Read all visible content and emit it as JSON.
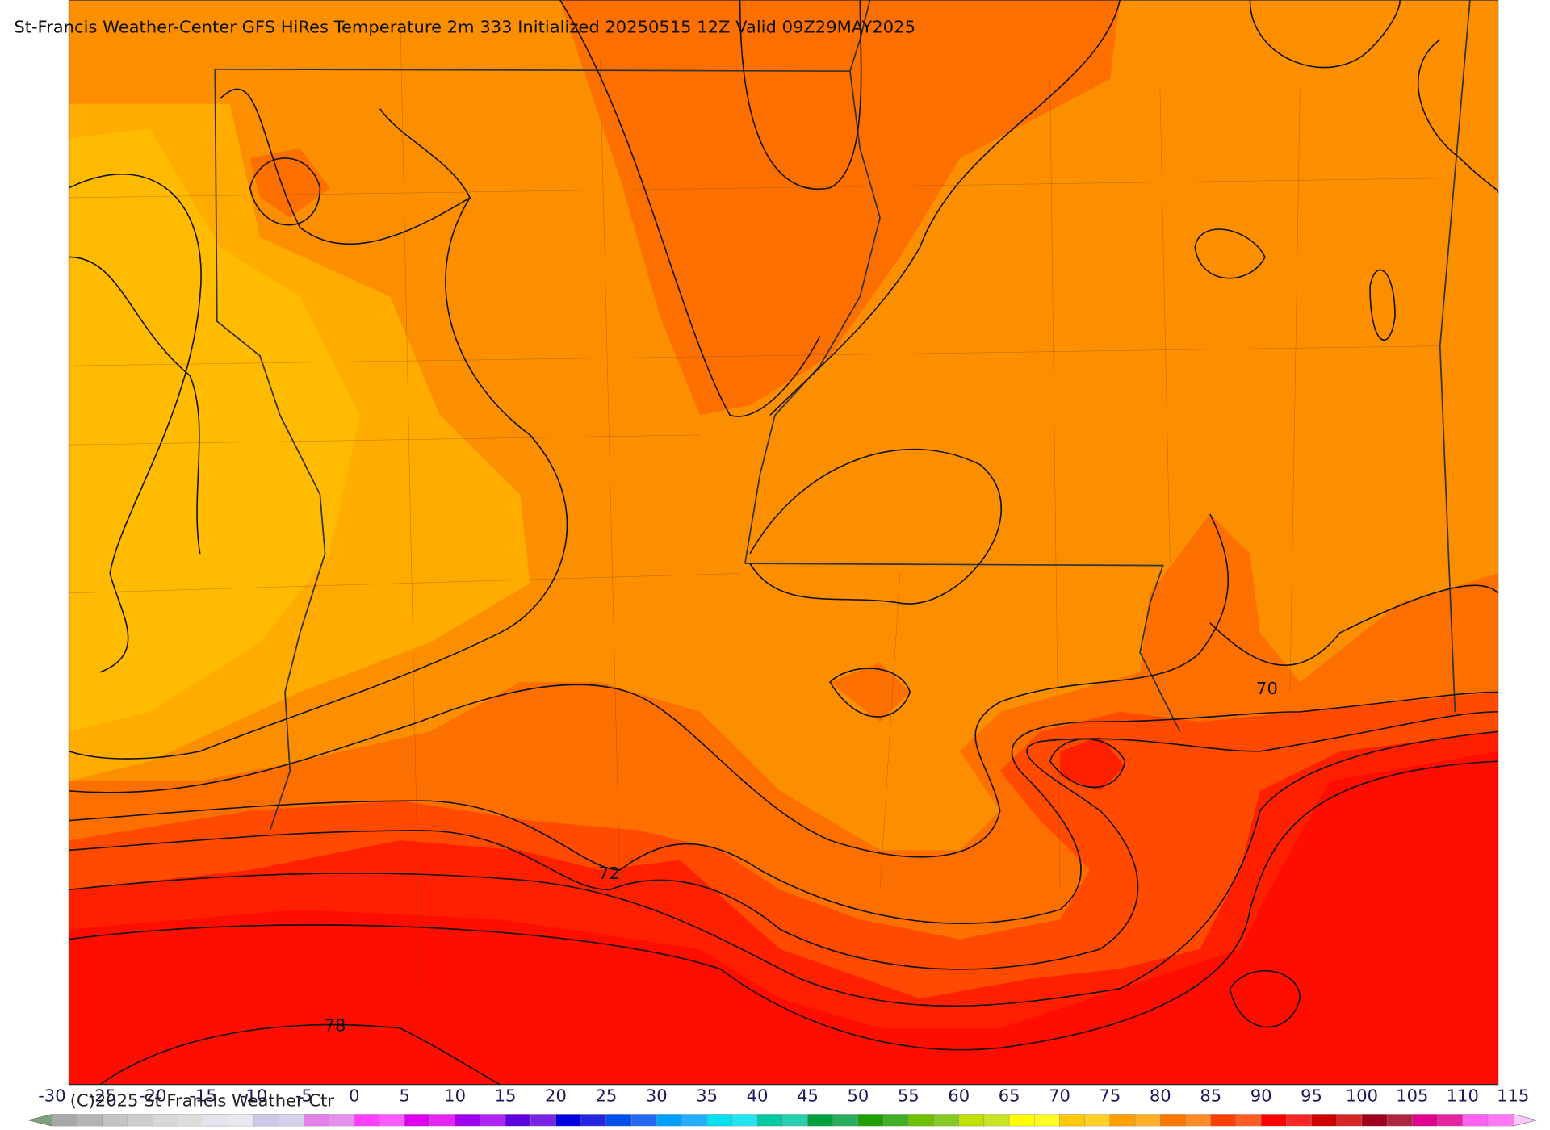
{
  "title": "St-Francis Weather-Center GFS HiRes Temperature 2m  333 Initialized 20250515 12Z Valid 09Z29MAY2025",
  "copyright": "(C)2025 St Francis Weather Ctr",
  "contour_labels": [
    {
      "text": "70"
    },
    {
      "text": "72"
    },
    {
      "text": "78"
    }
  ],
  "colorbar": {
    "ticks": [
      -30,
      -25,
      -20,
      -15,
      -10,
      -5,
      0,
      5,
      10,
      15,
      20,
      25,
      30,
      35,
      40,
      45,
      50,
      55,
      60,
      65,
      70,
      75,
      80,
      85,
      90,
      95,
      100,
      105,
      110,
      115
    ],
    "colors": [
      "#a8a8a8",
      "#c4c4c4",
      "#d8d8d8",
      "#e4e4ee",
      "#d0c8e8",
      "#e080e8",
      "#ff40ff",
      "#e000f0",
      "#a000f0",
      "#6000e0",
      "#0000e0",
      "#0050f0",
      "#00a0ff",
      "#00e0f0",
      "#00c8a0",
      "#00a040",
      "#20a000",
      "#70c000",
      "#c0e000",
      "#ffff00",
      "#ffc800",
      "#ffa000",
      "#ff7800",
      "#ff4000",
      "#ff0000",
      "#d00000",
      "#a00020",
      "#e0008c",
      "#ff60f0"
    ]
  }
}
